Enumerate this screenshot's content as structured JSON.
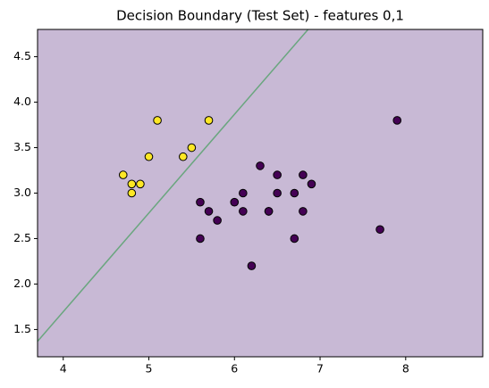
{
  "chart_data": {
    "type": "scatter",
    "title": "Decision Boundary (Test Set) - features 0,1",
    "xlim": [
      3.7,
      8.9
    ],
    "ylim": [
      1.2,
      4.8
    ],
    "xticks": [
      4,
      5,
      6,
      7,
      8
    ],
    "yticks": [
      1.5,
      {
        "value": 2,
        "label": "2.0"
      },
      2.5,
      {
        "value": 3,
        "label": "3.0"
      },
      3.5,
      {
        "value": 4,
        "label": "4.0"
      },
      4.5
    ],
    "boundary": {
      "x": [
        3.7,
        6.86
      ],
      "y": [
        1.37,
        4.8
      ],
      "color": "#6aa67f"
    },
    "regions": {
      "upper": "#eef5b9",
      "lower": "#c8b9d5"
    },
    "series": [
      {
        "color": "#fde725",
        "x": [
          4.7,
          4.8,
          4.8,
          4.9,
          5.0,
          5.1,
          5.4,
          5.5,
          5.7
        ],
        "y": [
          3.2,
          3.1,
          3.0,
          3.1,
          3.4,
          3.8,
          3.4,
          3.5,
          3.8
        ]
      },
      {
        "color": "#440154",
        "x": [
          5.6,
          5.6,
          5.7,
          5.8,
          6.0,
          6.1,
          6.1,
          6.2,
          6.3,
          6.4,
          6.4,
          6.5,
          6.5,
          6.7,
          6.7,
          6.8,
          6.8,
          6.9,
          7.7,
          7.9
        ],
        "y": [
          2.9,
          2.5,
          2.8,
          2.7,
          2.9,
          3.0,
          2.8,
          2.2,
          3.3,
          2.8,
          2.8,
          3.2,
          3.0,
          3.0,
          2.5,
          3.2,
          2.8,
          3.1,
          2.6,
          3.8
        ]
      }
    ]
  }
}
